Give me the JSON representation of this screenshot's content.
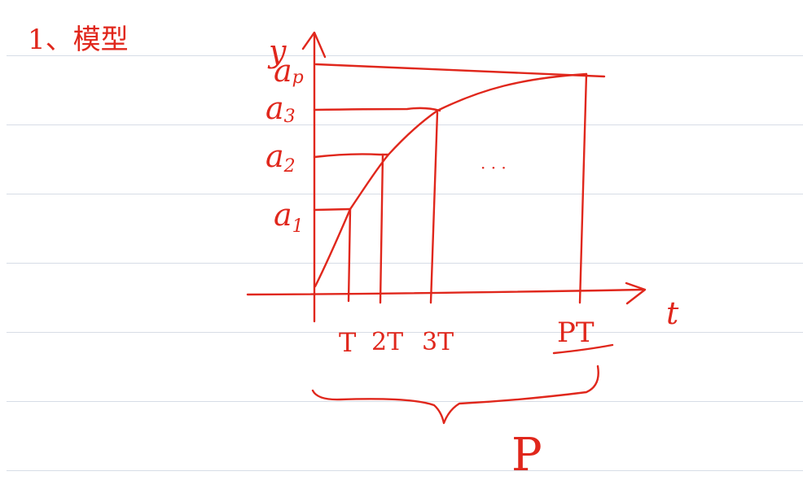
{
  "heading": "1、模型",
  "axes": {
    "y_label": "y",
    "x_label": "t"
  },
  "y_levels": [
    "a",
    "a",
    "a",
    "a"
  ],
  "y_level_subs": [
    "1",
    "2",
    "3",
    "p"
  ],
  "x_ticks": [
    "T",
    "2T",
    "3T",
    "PT"
  ],
  "ellipsis": "· · ·",
  "brace_label": "P",
  "colors": {
    "ink": "#e0271c",
    "ruling": "#d7dde6",
    "paper": "#ffffff"
  }
}
